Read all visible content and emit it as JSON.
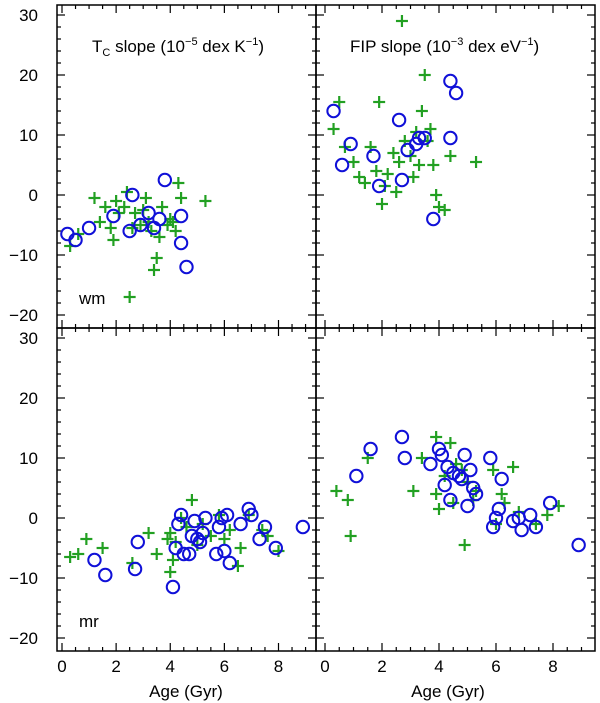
{
  "chart_data": [
    {
      "id": "tc-wm",
      "type": "scatter",
      "title": "T",
      "title_sub": "C",
      "title_rest": " slope (10",
      "title_exp": "−5",
      "title_unit": " dex K",
      "title_unit_exp": "−1",
      "title_close": ")",
      "sample_label": "",
      "xlim": [
        -0.6,
        9.6
      ],
      "ylim": [
        -22,
        32
      ],
      "series": [
        {
          "name": "plus",
          "marker": "plus",
          "color": "#22a022",
          "points": [
            [
              0.3,
              -8.5
            ],
            [
              0.6,
              -6.5
            ],
            [
              1.2,
              -0.5
            ],
            [
              1.4,
              -4.5
            ],
            [
              1.6,
              -2.0
            ],
            [
              1.8,
              -5.5
            ],
            [
              1.9,
              -7.5
            ],
            [
              2.0,
              -1.0
            ],
            [
              2.1,
              -3.0
            ],
            [
              2.3,
              -2.0
            ],
            [
              2.4,
              0.5
            ],
            [
              2.5,
              -17.0
            ],
            [
              2.6,
              -5.5
            ],
            [
              2.7,
              -3.0
            ],
            [
              2.9,
              -5.0
            ],
            [
              3.0,
              -2.5
            ],
            [
              3.1,
              -0.5
            ],
            [
              3.2,
              -4.5
            ],
            [
              3.3,
              -6.0
            ],
            [
              3.4,
              -12.5
            ],
            [
              3.5,
              -10.5
            ],
            [
              3.6,
              -7.0
            ],
            [
              3.7,
              -2.0
            ],
            [
              3.9,
              -5.0
            ],
            [
              4.0,
              -4.0
            ],
            [
              4.1,
              -4.5
            ],
            [
              4.2,
              -6.0
            ],
            [
              4.3,
              2.0
            ],
            [
              4.4,
              -0.5
            ],
            [
              5.3,
              -1.0
            ]
          ]
        },
        {
          "name": "circle",
          "marker": "circle",
          "color": "#1010d8",
          "points": [
            [
              0.2,
              -6.5
            ],
            [
              0.5,
              -7.5
            ],
            [
              1.0,
              -5.5
            ],
            [
              1.9,
              -3.5
            ],
            [
              2.5,
              -6.0
            ],
            [
              2.6,
              0.0
            ],
            [
              2.9,
              -5.0
            ],
            [
              3.2,
              -3.0
            ],
            [
              3.4,
              -5.5
            ],
            [
              3.6,
              -4.0
            ],
            [
              3.8,
              2.5
            ],
            [
              4.4,
              -3.5
            ],
            [
              4.4,
              -8.0
            ],
            [
              4.6,
              -12.0
            ]
          ]
        }
      ]
    },
    {
      "id": "fip-wm",
      "type": "scatter",
      "title": "FIP slope (10",
      "title_exp": "−3",
      "title_unit": " dex eV",
      "title_unit_exp": "−1",
      "title_close": ")",
      "sample_label": "",
      "xlim": [
        -0.6,
        9.6
      ],
      "ylim": [
        -22,
        32
      ],
      "series": [
        {
          "name": "plus",
          "marker": "plus",
          "color": "#22a022",
          "points": [
            [
              0.3,
              11.0
            ],
            [
              0.5,
              15.5
            ],
            [
              0.7,
              8.0
            ],
            [
              1.0,
              5.5
            ],
            [
              1.2,
              3.0
            ],
            [
              1.4,
              2.0
            ],
            [
              1.6,
              8.0
            ],
            [
              1.8,
              4.0
            ],
            [
              1.9,
              15.5
            ],
            [
              2.0,
              -1.5
            ],
            [
              2.1,
              1.5
            ],
            [
              2.2,
              3.5
            ],
            [
              2.4,
              7.0
            ],
            [
              2.5,
              0.5
            ],
            [
              2.6,
              5.5
            ],
            [
              2.7,
              29.0
            ],
            [
              2.8,
              9.0
            ],
            [
              3.0,
              6.5
            ],
            [
              3.1,
              3.0
            ],
            [
              3.2,
              10.5
            ],
            [
              3.3,
              5.0
            ],
            [
              3.4,
              14.0
            ],
            [
              3.5,
              20.0
            ],
            [
              3.6,
              9.0
            ],
            [
              3.7,
              11.0
            ],
            [
              3.8,
              5.0
            ],
            [
              3.9,
              0.0
            ],
            [
              4.0,
              -2.0
            ],
            [
              4.2,
              -2.5
            ],
            [
              4.4,
              6.5
            ],
            [
              5.3,
              5.5
            ]
          ]
        },
        {
          "name": "circle",
          "marker": "circle",
          "color": "#1010d8",
          "points": [
            [
              0.3,
              14.0
            ],
            [
              0.6,
              5.0
            ],
            [
              0.9,
              8.5
            ],
            [
              1.7,
              6.5
            ],
            [
              1.9,
              1.5
            ],
            [
              2.6,
              12.5
            ],
            [
              2.7,
              2.5
            ],
            [
              2.9,
              7.5
            ],
            [
              3.2,
              8.5
            ],
            [
              3.3,
              9.5
            ],
            [
              3.5,
              9.5
            ],
            [
              3.8,
              -4.0
            ],
            [
              4.4,
              9.5
            ],
            [
              4.4,
              19.0
            ],
            [
              4.6,
              17.0
            ]
          ]
        }
      ]
    },
    {
      "id": "tc-mr",
      "type": "scatter",
      "title": "",
      "sample_label": "mr",
      "xlim": [
        -0.6,
        9.6
      ],
      "ylim": [
        -22,
        32
      ],
      "series": [
        {
          "name": "plus",
          "marker": "plus",
          "color": "#22a022",
          "points": [
            [
              0.3,
              -6.5
            ],
            [
              0.6,
              -6.0
            ],
            [
              0.9,
              -3.5
            ],
            [
              1.5,
              -5.0
            ],
            [
              2.6,
              -7.5
            ],
            [
              3.2,
              -2.5
            ],
            [
              3.5,
              -6.0
            ],
            [
              3.9,
              -3.5
            ],
            [
              4.0,
              -2.5
            ],
            [
              4.1,
              -7.0
            ],
            [
              4.2,
              -4.0
            ],
            [
              4.4,
              0.0
            ],
            [
              4.6,
              -1.5
            ],
            [
              4.8,
              3.0
            ],
            [
              5.0,
              -4.5
            ],
            [
              5.2,
              -1.0
            ],
            [
              5.5,
              -3.0
            ],
            [
              5.8,
              0.5
            ],
            [
              6.0,
              -3.5
            ],
            [
              6.2,
              -2.0
            ],
            [
              6.5,
              -8.0
            ],
            [
              6.6,
              -5.0
            ],
            [
              6.9,
              0.5
            ],
            [
              7.4,
              -2.0
            ],
            [
              7.6,
              -3.0
            ],
            [
              8.0,
              -5.5
            ],
            [
              4.0,
              -9.0
            ]
          ]
        },
        {
          "name": "circle",
          "marker": "circle",
          "color": "#1010d8",
          "points": [
            [
              1.2,
              -7.0
            ],
            [
              1.6,
              -9.5
            ],
            [
              2.7,
              -8.5
            ],
            [
              2.8,
              -4.0
            ],
            [
              4.1,
              -11.5
            ],
            [
              4.2,
              -5.0
            ],
            [
              4.3,
              -1.0
            ],
            [
              4.4,
              0.5
            ],
            [
              4.5,
              -6.0
            ],
            [
              4.7,
              -6.0
            ],
            [
              4.8,
              -3.0
            ],
            [
              4.9,
              -0.5
            ],
            [
              5.0,
              -3.5
            ],
            [
              5.1,
              -4.0
            ],
            [
              5.2,
              -2.5
            ],
            [
              5.3,
              0.0
            ],
            [
              5.7,
              -6.0
            ],
            [
              5.8,
              -1.5
            ],
            [
              5.9,
              0.0
            ],
            [
              6.0,
              -5.5
            ],
            [
              6.1,
              0.5
            ],
            [
              6.2,
              -7.5
            ],
            [
              6.6,
              -1.0
            ],
            [
              6.9,
              1.5
            ],
            [
              7.0,
              0.5
            ],
            [
              7.3,
              -3.5
            ],
            [
              7.5,
              -1.5
            ],
            [
              7.9,
              -5.0
            ],
            [
              8.9,
              -1.5
            ]
          ]
        }
      ]
    },
    {
      "id": "fip-mr",
      "type": "scatter",
      "title": "",
      "sample_label": "",
      "xlim": [
        -0.6,
        9.6
      ],
      "ylim": [
        -22,
        32
      ],
      "series": [
        {
          "name": "plus",
          "marker": "plus",
          "color": "#22a022",
          "points": [
            [
              0.4,
              4.5
            ],
            [
              0.8,
              3.0
            ],
            [
              0.9,
              -3.0
            ],
            [
              1.5,
              10.0
            ],
            [
              3.1,
              4.5
            ],
            [
              3.4,
              10.0
            ],
            [
              3.9,
              13.5
            ],
            [
              3.9,
              4.0
            ],
            [
              4.0,
              1.5
            ],
            [
              4.2,
              7.0
            ],
            [
              4.4,
              12.5
            ],
            [
              4.5,
              2.5
            ],
            [
              4.6,
              9.0
            ],
            [
              4.8,
              8.0
            ],
            [
              4.9,
              -4.5
            ],
            [
              5.0,
              6.0
            ],
            [
              5.2,
              3.0
            ],
            [
              5.3,
              4.5
            ],
            [
              5.9,
              8.0
            ],
            [
              6.0,
              -1.0
            ],
            [
              6.2,
              4.0
            ],
            [
              6.3,
              2.5
            ],
            [
              6.6,
              8.5
            ],
            [
              6.8,
              1.0
            ],
            [
              7.4,
              -1.0
            ],
            [
              7.8,
              0.5
            ],
            [
              8.2,
              2.0
            ]
          ]
        },
        {
          "name": "circle",
          "marker": "circle",
          "color": "#1010d8",
          "points": [
            [
              1.1,
              7.0
            ],
            [
              1.6,
              11.5
            ],
            [
              2.7,
              13.5
            ],
            [
              2.8,
              10.0
            ],
            [
              3.7,
              9.0
            ],
            [
              4.0,
              11.5
            ],
            [
              4.1,
              10.5
            ],
            [
              4.2,
              5.5
            ],
            [
              4.3,
              8.5
            ],
            [
              4.4,
              3.0
            ],
            [
              4.5,
              7.5
            ],
            [
              4.7,
              7.0
            ],
            [
              4.8,
              6.5
            ],
            [
              4.9,
              10.5
            ],
            [
              5.0,
              2.0
            ],
            [
              5.1,
              8.0
            ],
            [
              5.2,
              5.0
            ],
            [
              5.3,
              4.0
            ],
            [
              5.8,
              10.0
            ],
            [
              5.9,
              -1.5
            ],
            [
              6.0,
              0.0
            ],
            [
              6.1,
              1.5
            ],
            [
              6.2,
              6.5
            ],
            [
              6.6,
              -0.5
            ],
            [
              6.8,
              0.0
            ],
            [
              6.9,
              -2.0
            ],
            [
              7.2,
              0.5
            ],
            [
              7.4,
              -1.5
            ],
            [
              7.9,
              2.5
            ],
            [
              8.9,
              -4.5
            ]
          ]
        }
      ]
    }
  ],
  "axes": {
    "y_ticks": [
      -20,
      -10,
      0,
      10,
      20,
      30
    ],
    "x_ticks": [
      0,
      2,
      4,
      6,
      8
    ],
    "y_tick_labels": [
      "−20",
      "−10",
      "0",
      "10",
      "20",
      "30"
    ],
    "x_tick_labels": [
      "0",
      "2",
      "4",
      "6",
      "8"
    ],
    "xlabel": "Age (Gyr)",
    "top_sample_label": "wm"
  }
}
